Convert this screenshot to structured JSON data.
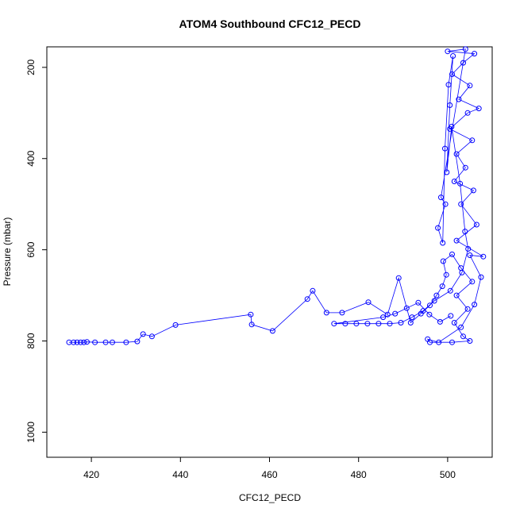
{
  "chart_data": {
    "type": "scatter",
    "title": "ATOM4 Southbound CFC12_PECD",
    "xlabel": "CFC12_PECD",
    "ylabel": "Pressure (mbar)",
    "xlim": [
      410,
      510
    ],
    "ylim": [
      1055,
      155
    ],
    "y_reversed": true,
    "x_ticks": [
      420,
      440,
      460,
      480,
      500
    ],
    "y_ticks": [
      200,
      400,
      600,
      800,
      1000
    ],
    "grid": false,
    "color": "#0000ff",
    "marker": "open-circle",
    "connected": true,
    "series": [
      {
        "values": [
          [
            415.0,
            803
          ],
          [
            416.0,
            803
          ],
          [
            416.8,
            803
          ],
          [
            417.6,
            803
          ],
          [
            418.3,
            803
          ],
          [
            419.0,
            802
          ],
          [
            420.8,
            803
          ],
          [
            423.2,
            803
          ],
          [
            424.7,
            803
          ],
          [
            427.8,
            803
          ],
          [
            430.3,
            801
          ],
          [
            431.6,
            785
          ],
          [
            433.6,
            790
          ],
          [
            438.9,
            765
          ],
          [
            455.8,
            742
          ],
          [
            456.0,
            764
          ],
          [
            460.7,
            778
          ],
          [
            468.5,
            708
          ],
          [
            469.7,
            690
          ],
          [
            472.8,
            738
          ],
          [
            476.3,
            738
          ],
          [
            482.2,
            715
          ],
          [
            486.5,
            742
          ],
          [
            489.0,
            662
          ],
          [
            491.7,
            760
          ],
          [
            494.0,
            740
          ],
          [
            496.0,
            722
          ],
          [
            497.5,
            700
          ],
          [
            498.8,
            680
          ],
          [
            499.7,
            655
          ],
          [
            499.0,
            625
          ],
          [
            501.0,
            610
          ],
          [
            503.0,
            640
          ],
          [
            505.5,
            670
          ],
          [
            502.0,
            700
          ],
          [
            504.5,
            730
          ],
          [
            501.5,
            760
          ],
          [
            503.5,
            790
          ],
          [
            505.0,
            800
          ],
          [
            501.0,
            803
          ],
          [
            496.0,
            803
          ],
          [
            495.5,
            796
          ],
          [
            498.0,
            803
          ],
          [
            503.0,
            770
          ],
          [
            506.0,
            720
          ],
          [
            507.5,
            660
          ],
          [
            505.0,
            612
          ],
          [
            508.0,
            615
          ],
          [
            502.0,
            580
          ],
          [
            506.5,
            545
          ],
          [
            503.0,
            500
          ],
          [
            505.8,
            470
          ],
          [
            501.5,
            450
          ],
          [
            504.0,
            420
          ],
          [
            502.0,
            390
          ],
          [
            505.5,
            360
          ],
          [
            500.5,
            335
          ],
          [
            504.5,
            300
          ],
          [
            507.0,
            290
          ],
          [
            502.5,
            270
          ],
          [
            505.0,
            240
          ],
          [
            501.0,
            215
          ],
          [
            503.5,
            190
          ],
          [
            506.0,
            170
          ],
          [
            500.0,
            165
          ],
          [
            504.0,
            160
          ],
          [
            498.5,
            485
          ],
          [
            499.5,
            500
          ],
          [
            497.8,
            552
          ],
          [
            498.9,
            585
          ],
          [
            499.4,
            378
          ],
          [
            500.2,
            238
          ],
          [
            501.2,
            175
          ],
          [
            500.5,
            283
          ],
          [
            499.8,
            430
          ],
          [
            500.9,
            330
          ],
          [
            502.8,
            455
          ],
          [
            503.9,
            560
          ],
          [
            504.6,
            598
          ],
          [
            503.2,
            650
          ],
          [
            500.6,
            690
          ],
          [
            497.0,
            712
          ],
          [
            494.5,
            734
          ],
          [
            492.0,
            748
          ],
          [
            489.5,
            760
          ],
          [
            487.0,
            762
          ],
          [
            484.5,
            762
          ],
          [
            482.0,
            762
          ],
          [
            479.5,
            762
          ],
          [
            477.0,
            762
          ],
          [
            474.5,
            762
          ],
          [
            485.5,
            748
          ],
          [
            488.2,
            740
          ],
          [
            490.8,
            728
          ],
          [
            493.4,
            716
          ],
          [
            495.9,
            742
          ],
          [
            498.3,
            758
          ],
          [
            500.7,
            745
          ]
        ]
      }
    ]
  }
}
